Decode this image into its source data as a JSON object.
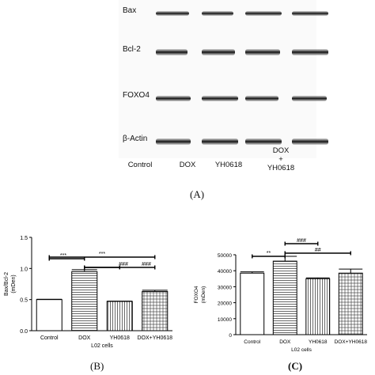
{
  "blot": {
    "rows": [
      "Bax",
      "Bcl-2",
      "FOXO4",
      "β-Actin"
    ],
    "lanes": [
      "Control",
      "DOX",
      "YH0618",
      "DOX\n+\nYH0618"
    ]
  },
  "panels": {
    "A": "(A)",
    "B": "(B)",
    "C": "(C)"
  },
  "chart_data": [
    {
      "type": "bar",
      "panel": "B",
      "categories": [
        "Control",
        "DOX",
        "YH0618",
        "DOX+YH0618"
      ],
      "values": [
        0.5,
        0.95,
        0.47,
        0.63
      ],
      "errors": [
        0.005,
        0.03,
        0.005,
        0.02
      ],
      "ylabel": "Bax/Bcl-2\n(mDen)",
      "xlabel": "L02 cells",
      "ylim": [
        0.0,
        1.5
      ],
      "yticks": [
        "0.0",
        "0.5",
        "1.0",
        "1.5"
      ],
      "significance": [
        {
          "from": 0,
          "to": 1,
          "label": "***"
        },
        {
          "from": 0,
          "to": 3,
          "label": "***"
        },
        {
          "from": 1,
          "to": 2,
          "label": "###"
        },
        {
          "from": 1,
          "to": 3,
          "label": "###"
        }
      ]
    },
    {
      "type": "bar",
      "panel": "C",
      "categories": [
        "Control",
        "DOX",
        "YH0618",
        "DOX+YH0618"
      ],
      "values": [
        38500,
        46000,
        35000,
        38500
      ],
      "errors": [
        800,
        3000,
        500,
        2500
      ],
      "ylabel": "FOXO4\n(mDen)",
      "xlabel": "L02 cells",
      "ylim": [
        0,
        50000
      ],
      "yticks": [
        "0",
        "10000",
        "20000",
        "30000",
        "40000",
        "50000"
      ],
      "significance": [
        {
          "from": 0,
          "to": 1,
          "label": "**"
        },
        {
          "from": 1,
          "to": 2,
          "label": "###"
        },
        {
          "from": 1,
          "to": 3,
          "label": "##"
        }
      ]
    }
  ]
}
